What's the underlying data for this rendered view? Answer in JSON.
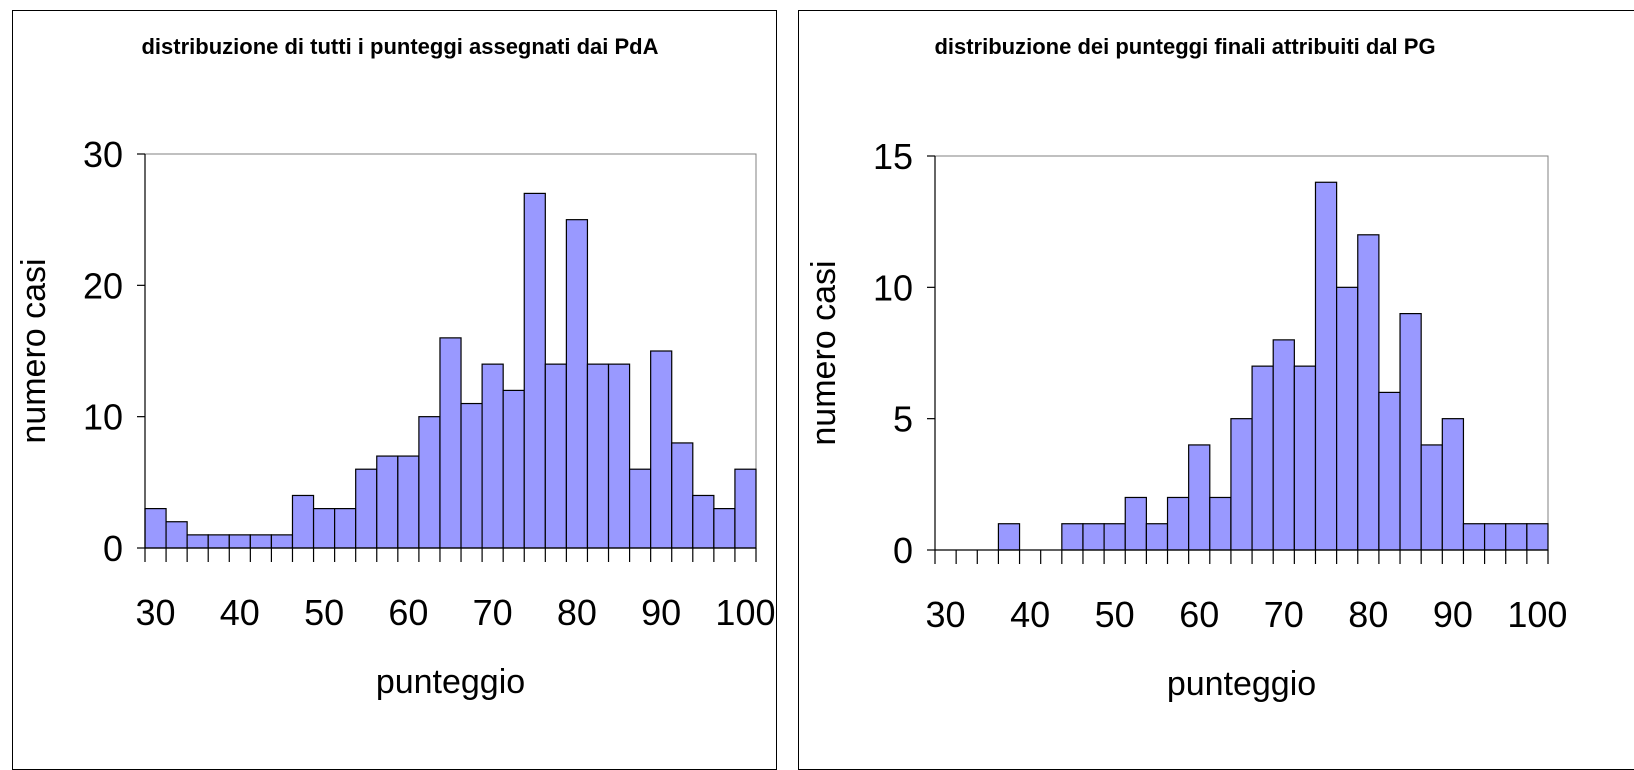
{
  "chart_data": [
    {
      "type": "histogram",
      "title": "distribuzione di tutti i punteggi assegnati dai PdA",
      "x_label": "punteggio",
      "y_label": "numero casi",
      "color": "#9999ff",
      "bins": [
        28.75,
        31.25,
        33.75,
        36.25,
        38.75,
        41.25,
        43.75,
        46.25,
        48.75,
        51.25,
        53.75,
        56.25,
        58.75,
        61.25,
        63.75,
        66.25,
        68.75,
        71.25,
        73.75,
        76.25,
        78.75,
        81.25,
        83.75,
        86.25,
        88.75,
        91.25,
        93.75,
        96.25,
        98.75,
        101.25
      ],
      "values": [
        3,
        2,
        1,
        1,
        1,
        1,
        1,
        4,
        3,
        3,
        6,
        7,
        7,
        10,
        16,
        11,
        14,
        12,
        27,
        14,
        25,
        14,
        14,
        6,
        15,
        8,
        4,
        3,
        6
      ],
      "xlim": [
        28.75,
        101.25
      ],
      "xticks": [
        30,
        40,
        50,
        60,
        70,
        80,
        90,
        100
      ],
      "ylim": [
        0,
        30
      ],
      "yticks": [
        0,
        10,
        20,
        30
      ]
    },
    {
      "type": "histogram",
      "title": "distribuzione dei punteggi finali attribuiti dal PG",
      "x_label": "punteggio",
      "y_label": "numero casi",
      "color": "#9999ff",
      "bins": [
        28.75,
        31.25,
        33.75,
        36.25,
        38.75,
        41.25,
        43.75,
        46.25,
        48.75,
        51.25,
        53.75,
        56.25,
        58.75,
        61.25,
        63.75,
        66.25,
        68.75,
        71.25,
        73.75,
        76.25,
        78.75,
        81.25,
        83.75,
        86.25,
        88.75,
        91.25,
        93.75,
        96.25,
        98.75,
        101.25
      ],
      "values": [
        0,
        0,
        0,
        1,
        0,
        0,
        1,
        1,
        1,
        2,
        1,
        2,
        4,
        2,
        5,
        7,
        8,
        7,
        14,
        10,
        12,
        6,
        9,
        4,
        5,
        1,
        1,
        1,
        1
      ],
      "xlim": [
        28.75,
        101.25
      ],
      "xticks": [
        30,
        40,
        50,
        60,
        70,
        80,
        90,
        100
      ],
      "ylim": [
        0,
        15
      ],
      "yticks": [
        0,
        5,
        10,
        15
      ]
    }
  ]
}
